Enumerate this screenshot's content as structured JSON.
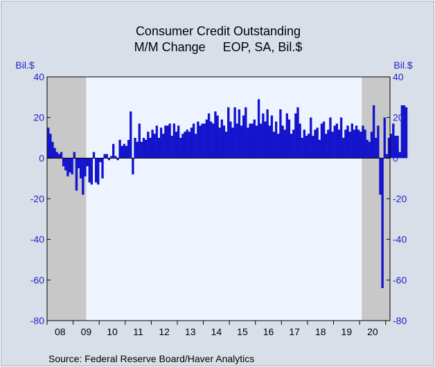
{
  "chart_data": {
    "type": "bar",
    "title": "Consumer Credit Outstanding",
    "subtitle": "M/M Change     EOP, SA, Bil.$",
    "ylabel_left": "Bil.$",
    "ylabel_right": "Bil.$",
    "ylim": [
      -80,
      40
    ],
    "yticks": [
      40,
      20,
      0,
      -20,
      -40,
      -60,
      -80
    ],
    "start": "2008-01",
    "x_tick_labels": [
      "08",
      "09",
      "10",
      "11",
      "12",
      "13",
      "14",
      "15",
      "16",
      "17",
      "18",
      "19",
      "20"
    ],
    "recession_shading": [
      {
        "from": "2008-01",
        "to": "2009-06"
      },
      {
        "from": "2020-02",
        "to": "2021-02"
      }
    ],
    "colors": {
      "bar": "#1414cc",
      "plot_bg": "#eef4ff",
      "recession": "#c8c8c8",
      "frame_bg": "#d9dfe8",
      "tick_text": "#1f1fc8"
    },
    "values": [
      15,
      12,
      8,
      5,
      3,
      2,
      3,
      -4,
      -6,
      -9,
      -7,
      -8,
      3,
      -16,
      -5,
      -10,
      -18,
      -9,
      -4,
      -12,
      -13,
      3,
      -12,
      -13,
      -2,
      -10,
      2,
      2,
      -1,
      1,
      7,
      1,
      -1,
      9,
      6,
      7,
      6,
      9,
      23,
      -8,
      10,
      8,
      17,
      8,
      10,
      9,
      13,
      10,
      14,
      12,
      16,
      10,
      15,
      12,
      16,
      16,
      17,
      11,
      17,
      13,
      16,
      10,
      12,
      13,
      14,
      13,
      15,
      17,
      12,
      18,
      16,
      17,
      17,
      19,
      22,
      18,
      17,
      23,
      21,
      15,
      19,
      16,
      13,
      25,
      18,
      15,
      25,
      17,
      24,
      16,
      21,
      25,
      15,
      17,
      17,
      19,
      16,
      29,
      17,
      22,
      18,
      24,
      16,
      21,
      13,
      18,
      12,
      24,
      16,
      14,
      22,
      19,
      12,
      14,
      22,
      25,
      17,
      10,
      14,
      11,
      12,
      20,
      11,
      14,
      15,
      9,
      17,
      18,
      12,
      14,
      20,
      13,
      16,
      17,
      14,
      20,
      10,
      14,
      16,
      13,
      17,
      14,
      16,
      14,
      13,
      16,
      14,
      9,
      8,
      13,
      26,
      10,
      16,
      -18,
      -64,
      20,
      2,
      10,
      12,
      17,
      11,
      11,
      3,
      26,
      26,
      25
    ]
  },
  "source": "Source:  Federal Reserve Board/Haver Analytics"
}
